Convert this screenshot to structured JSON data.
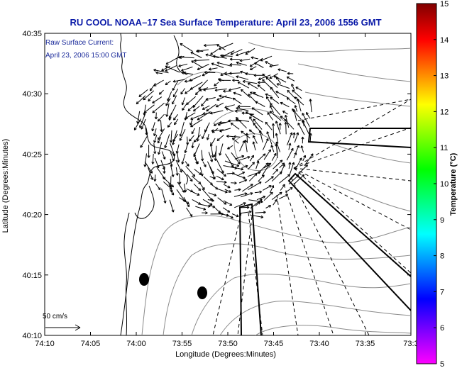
{
  "title": "RU COOL  NOAA–17  Sea Surface Temperature:  April 23, 2006 1556 GMT",
  "annotation": {
    "line1": "Raw Surface Current:",
    "line2": "April 23, 2006 15:00 GMT"
  },
  "x_axis": {
    "label": "Longitude (Degrees:Minutes)",
    "ticks": [
      "74:10",
      "74:05",
      "74:00",
      "73:55",
      "73:50",
      "73:45",
      "73:40",
      "73:35",
      "73:3"
    ]
  },
  "y_axis": {
    "label": "Latitude (Degrees:Minutes)",
    "ticks": [
      "40:35",
      "40:30",
      "40:25",
      "40:20",
      "40:15",
      "40:10"
    ]
  },
  "colorbar": {
    "label": "Temperature (°C)",
    "ticks": [
      "15",
      "14",
      "13",
      "12",
      "11",
      "10",
      "9",
      "8",
      "7",
      "6",
      "5"
    ],
    "colors": [
      "#ff00ff",
      "#8000ff",
      "#0000ff",
      "#0080ff",
      "#00ffff",
      "#00ff80",
      "#00ff00",
      "#80ff00",
      "#ffff00",
      "#ff8000",
      "#ff0000",
      "#800000"
    ]
  },
  "scale_vector": "50 cm/s",
  "colors": {
    "title": "#0a1aa8",
    "annotation": "#1a2a9a",
    "coast": "#000000",
    "bathymetry": "#8a8a8a"
  }
}
